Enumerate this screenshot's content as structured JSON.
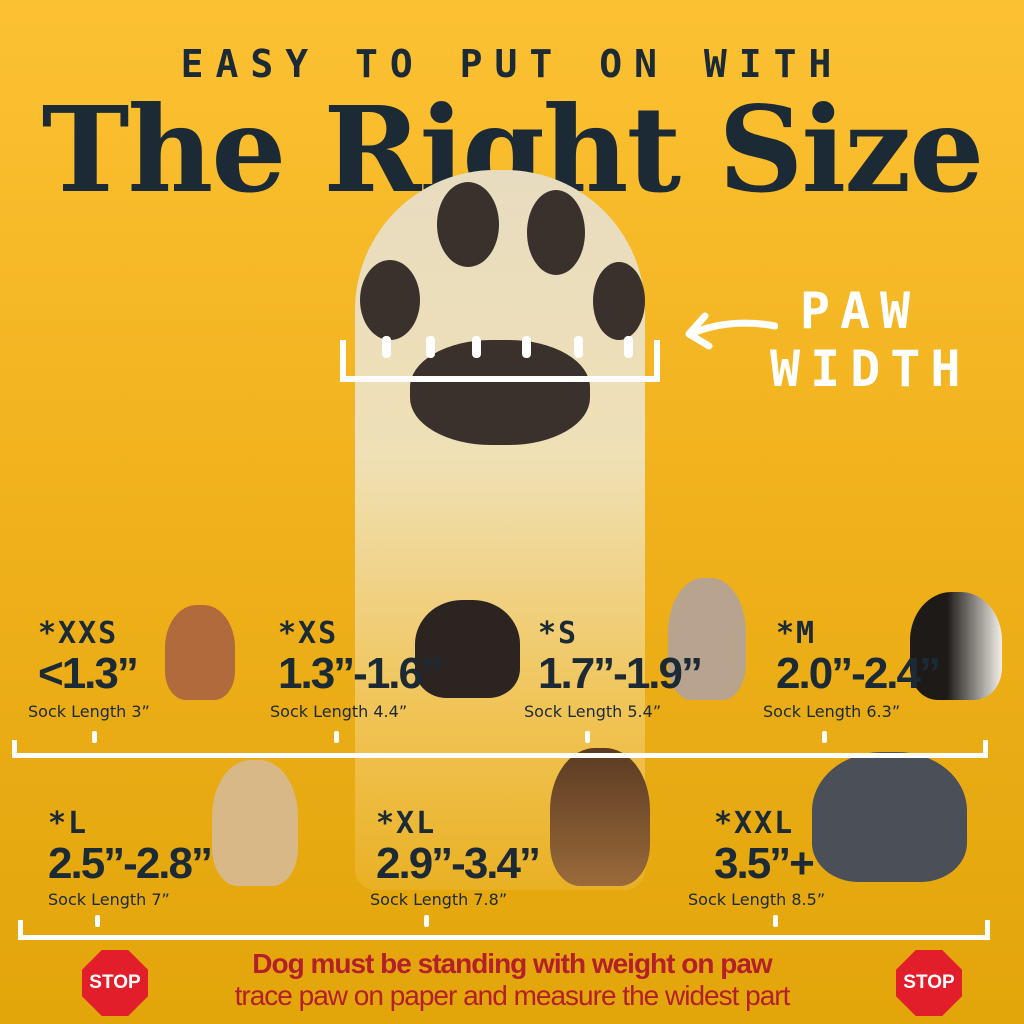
{
  "header": {
    "subtitle": "EASY TO PUT ON WITH",
    "title": "The Right Size"
  },
  "paw": {
    "label_line1": "PAW",
    "label_line2": "WIDTH"
  },
  "sizes_row1": [
    {
      "code": "*XXS",
      "range": "<1.3”",
      "sock": "Sock Length 3”"
    },
    {
      "code": "*XS",
      "range": "1.3”-1.6”",
      "sock": "Sock Length 4.4”"
    },
    {
      "code": "*S",
      "range": "1.7”-1.9”",
      "sock": "Sock Length 5.4”"
    },
    {
      "code": "*M",
      "range": "2.0”-2.4”",
      "sock": "Sock Length 6.3”"
    }
  ],
  "sizes_row2": [
    {
      "code": "*L",
      "range": "2.5”-2.8”",
      "sock": "Sock Length 7”"
    },
    {
      "code": "*XL",
      "range": "2.9”-3.4”",
      "sock": "Sock Length 7.8”"
    },
    {
      "code": "*XXL",
      "range": "3.5”+",
      "sock": "Sock Length 8.5”"
    }
  ],
  "footer": {
    "warning": "Dog must be standing with weight on paw",
    "instruction": "trace paw on paper and measure the widest part",
    "stop_label": "STOP"
  },
  "colors": {
    "background": "#f5b820",
    "text": "#1c2a36",
    "warning": "#b3202a",
    "stop": "#e31e2b"
  }
}
